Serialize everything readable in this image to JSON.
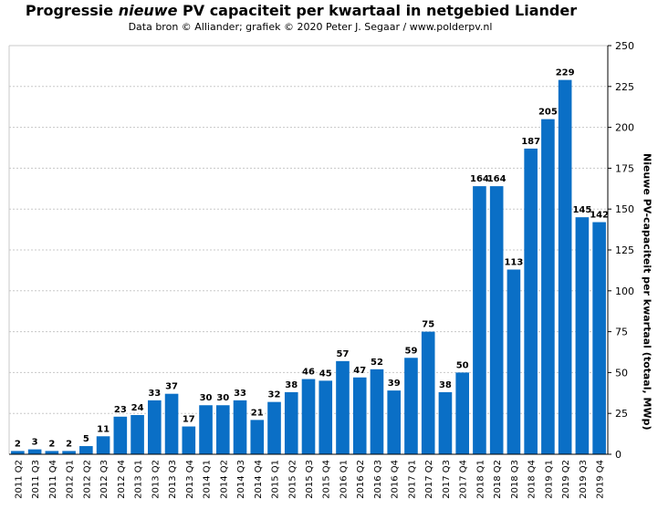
{
  "title": {
    "prefix": "Progressie ",
    "emphasis": "nieuwe",
    "suffix": " PV capaciteit  per kwartaal in netgebied Liander"
  },
  "subtitle": "Data bron © Alliander; grafiek © 2020 Peter J. Segaar / www.polderpv.nl",
  "colors": {
    "bar": "#0a6fc6",
    "grid": "#c8c8c8",
    "axis": "#000000"
  },
  "chart_data": {
    "type": "bar",
    "title": "Progressie nieuwe PV capaciteit  per kwartaal in netgebied Liander",
    "ylabel": "Nieuwe PV-capaciteit per kwartaal (totaal, MWp)",
    "ylim": [
      0,
      250
    ],
    "yticks": [
      0,
      25,
      50,
      75,
      100,
      125,
      150,
      175,
      200,
      225,
      250
    ],
    "y_axis_side": "right",
    "grid": true,
    "data_labels": true,
    "categories": [
      "2011 Q2",
      "2011 Q3",
      "2011 Q4",
      "2012 Q1",
      "2012 Q2",
      "2012 Q3",
      "2012 Q4",
      "2013 Q1",
      "2013 Q2",
      "2013 Q3",
      "2013 Q4",
      "2014 Q1",
      "2014 Q2",
      "2014 Q3",
      "2014 Q4",
      "2015 Q1",
      "2015 Q2",
      "2015 Q3",
      "2015 Q4",
      "2016 Q1",
      "2016 Q2",
      "2016 Q3",
      "2016 Q4",
      "2017 Q1",
      "2017 Q2",
      "2017 Q3",
      "2017 Q4",
      "2018 Q1",
      "2018 Q2",
      "2018 Q3",
      "2018 Q4",
      "2019 Q1",
      "2019 Q2",
      "2019 Q3",
      "2019 Q4"
    ],
    "values": [
      2,
      3,
      2,
      2,
      5,
      11,
      23,
      24,
      33,
      37,
      17,
      30,
      30,
      33,
      21,
      32,
      38,
      46,
      45,
      57,
      47,
      52,
      39,
      59,
      75,
      38,
      50,
      164,
      164,
      113,
      187,
      205,
      229,
      145,
      142
    ]
  }
}
